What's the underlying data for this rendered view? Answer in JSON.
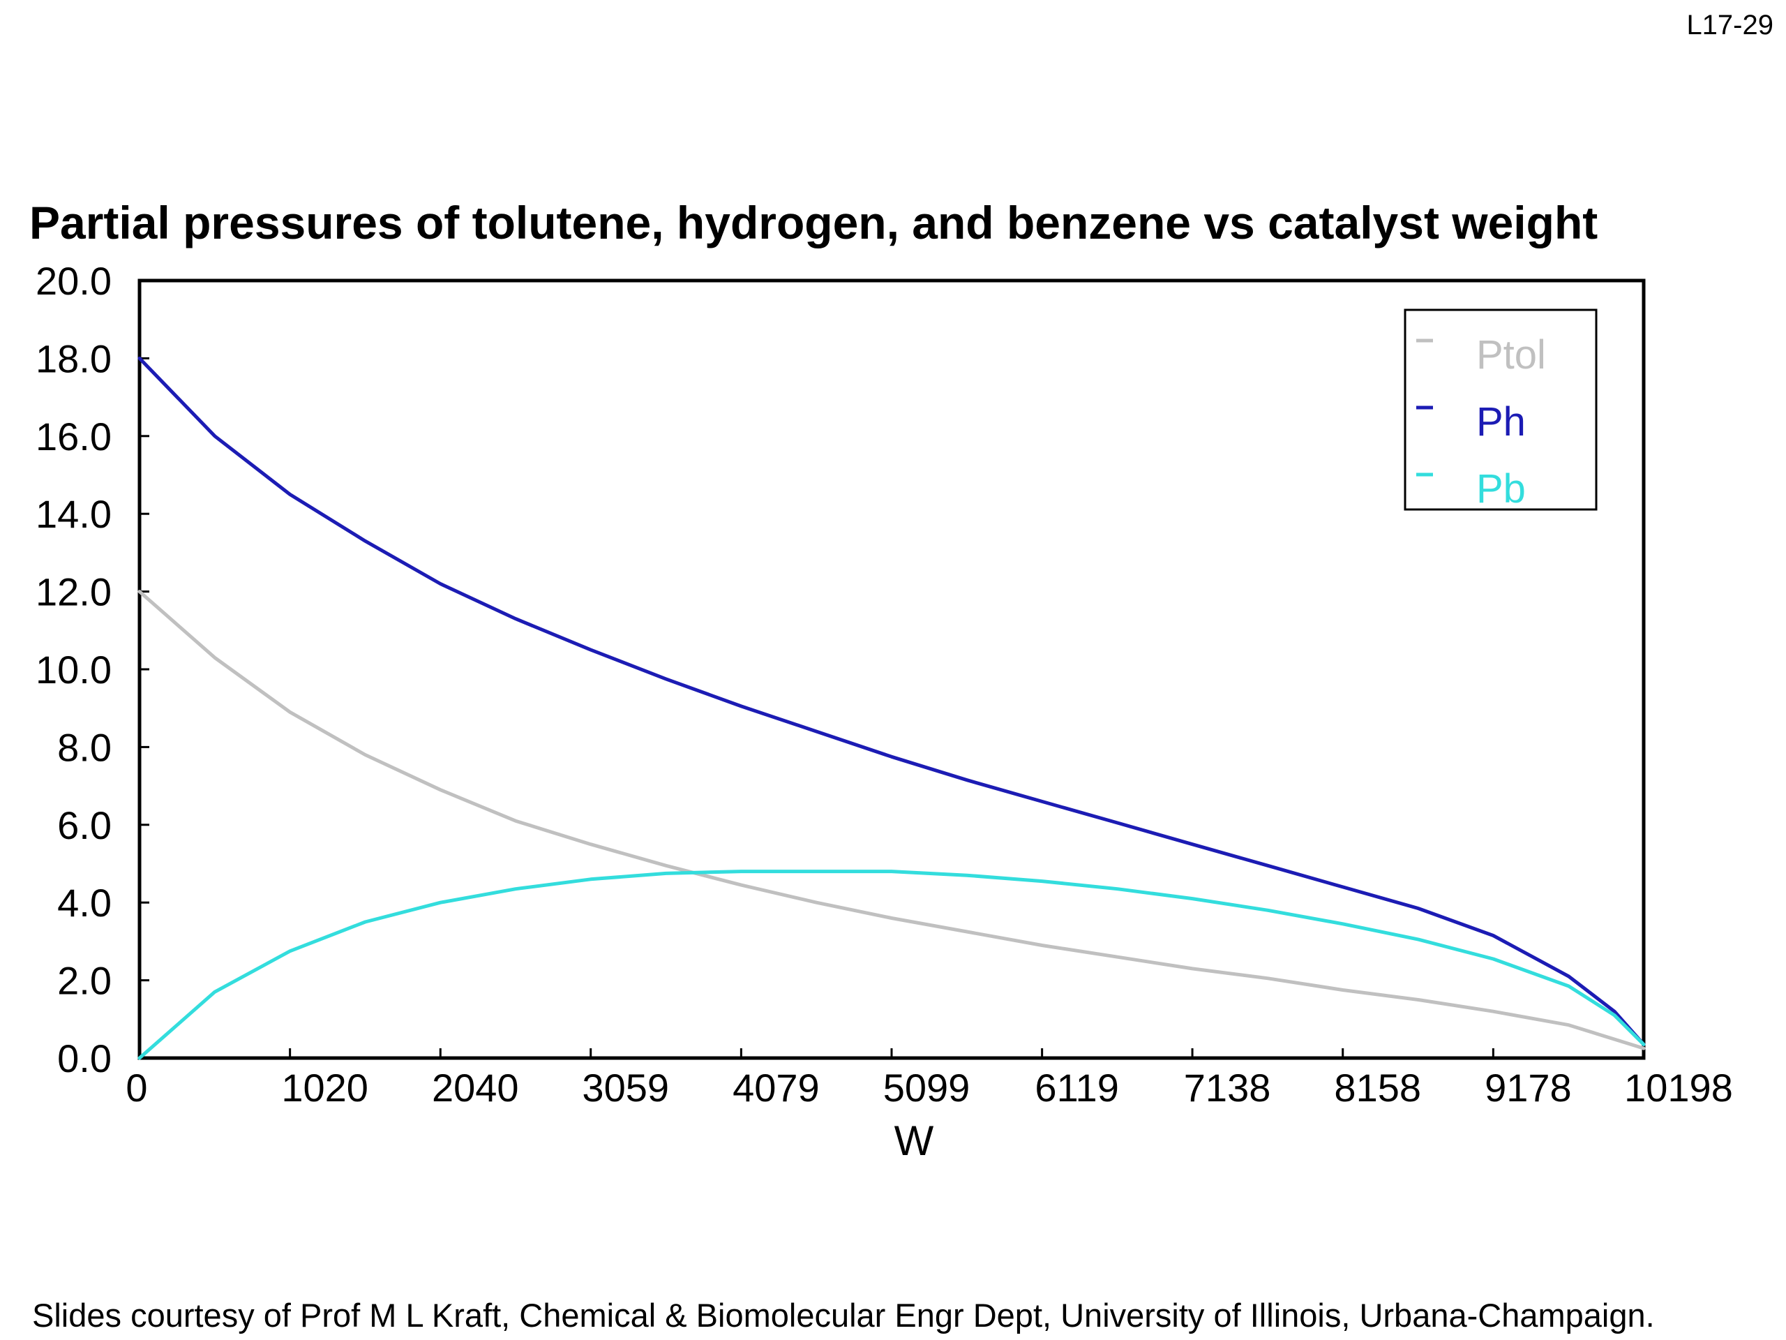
{
  "slide": {
    "number": "L17-29",
    "footer": "Slides courtesy of Prof M L Kraft, Chemical & Biomolecular Engr Dept, University of Illinois, Urbana-Champaign."
  },
  "chart_data": {
    "type": "line",
    "title": "Partial pressures of tolutene, hydrogen, and benzene vs catalyst weight",
    "xlabel": "W",
    "ylabel": "",
    "xlim": [
      0,
      10198
    ],
    "ylim": [
      0,
      20
    ],
    "x_ticks": [
      "0",
      "1020",
      "2040",
      "3059",
      "4079",
      "5099",
      "6119",
      "7138",
      "8158",
      "9178",
      "10198"
    ],
    "y_ticks": [
      "0.0",
      "2.0",
      "4.0",
      "6.0",
      "8.0",
      "10.0",
      "12.0",
      "14.0",
      "16.0",
      "18.0",
      "20.0"
    ],
    "legend_position": "top-right",
    "series": [
      {
        "name": "Ptol",
        "color": "#c0c0c0",
        "x": [
          0,
          510,
          1020,
          1530,
          2040,
          2550,
          3059,
          3570,
          4079,
          4590,
          5099,
          5610,
          6119,
          6630,
          7138,
          7650,
          8158,
          8670,
          9178,
          9690,
          10198
        ],
        "y": [
          12.0,
          10.3,
          8.9,
          7.8,
          6.9,
          6.1,
          5.5,
          4.95,
          4.45,
          4.0,
          3.6,
          3.25,
          2.9,
          2.6,
          2.3,
          2.05,
          1.75,
          1.5,
          1.2,
          0.85,
          0.25
        ]
      },
      {
        "name": "Ph",
        "color": "#1c1cb4",
        "x": [
          0,
          510,
          1020,
          1530,
          2040,
          2550,
          3059,
          3570,
          4079,
          4590,
          5099,
          5610,
          6119,
          6630,
          7138,
          7650,
          8158,
          8670,
          9178,
          9690,
          10000,
          10198
        ],
        "y": [
          18.0,
          16.0,
          14.5,
          13.3,
          12.2,
          11.3,
          10.5,
          9.75,
          9.05,
          8.4,
          7.75,
          7.15,
          6.6,
          6.05,
          5.5,
          4.95,
          4.4,
          3.85,
          3.15,
          2.1,
          1.2,
          0.35
        ]
      },
      {
        "name": "Pb",
        "color": "#33dddd",
        "x": [
          0,
          510,
          1020,
          1530,
          2040,
          2550,
          3059,
          3570,
          4079,
          4590,
          5099,
          5610,
          6119,
          6630,
          7138,
          7650,
          8158,
          8670,
          9178,
          9690,
          10000,
          10198
        ],
        "y": [
          0.0,
          1.7,
          2.75,
          3.5,
          4.0,
          4.35,
          4.6,
          4.75,
          4.8,
          4.8,
          4.8,
          4.7,
          4.55,
          4.35,
          4.1,
          3.8,
          3.45,
          3.05,
          2.55,
          1.85,
          1.1,
          0.35
        ]
      }
    ]
  }
}
